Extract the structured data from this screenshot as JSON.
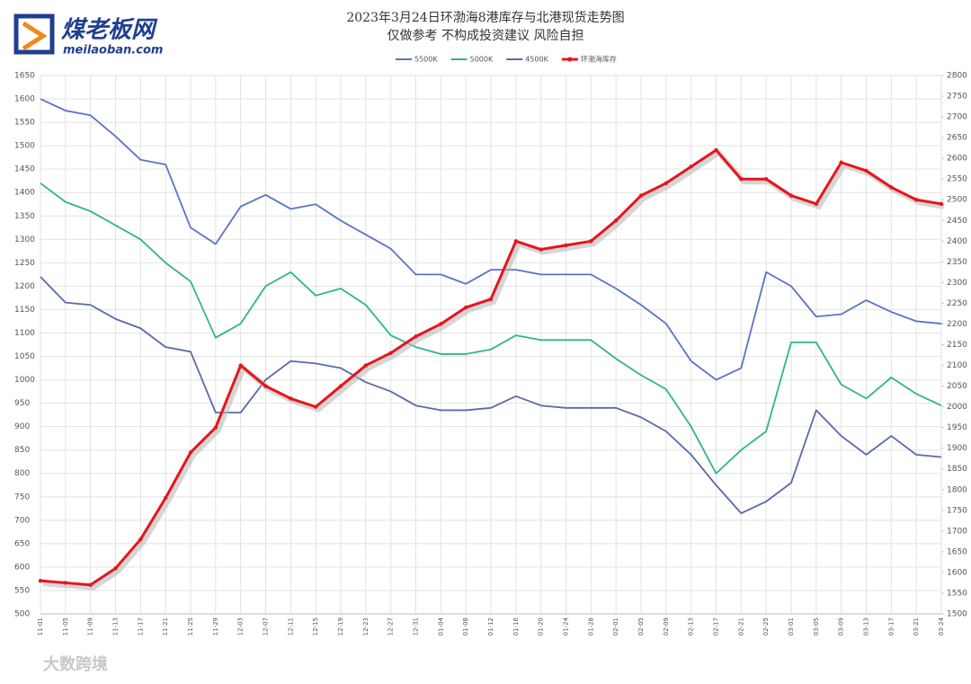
{
  "logo": {
    "name": "煤老板网",
    "site": "meilaoban.com"
  },
  "watermark": "大数跨境",
  "chart_data": {
    "type": "line",
    "title": "2023年3月24日环渤海8港库存与北港现货走势图",
    "subtitle": "仅做参考 不构成投资建议 风险自担",
    "categories": [
      "11-01",
      "11-05",
      "11-09",
      "11-13",
      "11-17",
      "11-21",
      "11-25",
      "11-29",
      "12-03",
      "12-07",
      "12-11",
      "12-15",
      "12-19",
      "12-23",
      "12-27",
      "12-31",
      "01-04",
      "01-08",
      "01-12",
      "01-16",
      "01-20",
      "01-24",
      "01-28",
      "02-01",
      "02-05",
      "02-09",
      "02-13",
      "02-17",
      "02-21",
      "02-25",
      "03-01",
      "03-05",
      "03-09",
      "03-13",
      "03-17",
      "03-21",
      "03-24"
    ],
    "series": [
      {
        "name": "5500K",
        "color": "#5b73c4",
        "values": [
          1600,
          1575,
          1565,
          1520,
          1470,
          1460,
          1325,
          1290,
          1370,
          1395,
          1365,
          1375,
          1340,
          1310,
          1280,
          1225,
          1225,
          1205,
          1235,
          1235,
          1225,
          1225,
          1225,
          1195,
          1160,
          1120,
          1040,
          1000,
          1025,
          1230,
          1200,
          1135,
          1140,
          1170,
          1145,
          1125,
          1120
        ]
      },
      {
        "name": "5000K",
        "color": "#2fb58a",
        "values": [
          1420,
          1380,
          1360,
          1330,
          1300,
          1250,
          1210,
          1090,
          1120,
          1200,
          1230,
          1180,
          1195,
          1160,
          1095,
          1070,
          1055,
          1055,
          1065,
          1095,
          1085,
          1085,
          1085,
          1045,
          1010,
          980,
          900,
          800,
          850,
          890,
          1080,
          1080,
          990,
          960,
          1005,
          970,
          945
        ]
      },
      {
        "name": "4500K",
        "color": "#5a6aa8",
        "values": [
          1220,
          1165,
          1160,
          1130,
          1110,
          1070,
          1060,
          930,
          930,
          1000,
          1040,
          1035,
          1025,
          995,
          975,
          945,
          935,
          935,
          940,
          965,
          945,
          940,
          940,
          940,
          920,
          890,
          840,
          775,
          715,
          740,
          780,
          935,
          880,
          840,
          880,
          840,
          835
        ]
      },
      {
        "name": "环渤海库存",
        "color": "#e8141b",
        "axis": "y2",
        "values": [
          1580,
          1575,
          1570,
          1610,
          1680,
          1780,
          1890,
          1950,
          2100,
          2050,
          2020,
          2000,
          2050,
          2100,
          2130,
          2170,
          2200,
          2240,
          2260,
          2400,
          2380,
          2390,
          2400,
          2450,
          2510,
          2540,
          2580,
          2620,
          2550,
          2550,
          2510,
          2490,
          2590,
          2570,
          2530,
          2500,
          2490
        ]
      }
    ],
    "ylim": [
      500,
      1650
    ],
    "yticks": [
      500,
      550,
      600,
      650,
      700,
      750,
      800,
      850,
      900,
      950,
      1000,
      1050,
      1100,
      1150,
      1200,
      1250,
      1300,
      1350,
      1400,
      1450,
      1500,
      1550,
      1600,
      1650
    ],
    "y2lim": [
      1500,
      2800
    ],
    "y2ticks": [
      1500,
      1550,
      1600,
      1650,
      1700,
      1750,
      1800,
      1850,
      1900,
      1950,
      2000,
      2050,
      2100,
      2150,
      2200,
      2250,
      2300,
      2350,
      2400,
      2450,
      2500,
      2550,
      2600,
      2650,
      2700,
      2750,
      2800
    ],
    "grid": true,
    "legend": "top"
  }
}
